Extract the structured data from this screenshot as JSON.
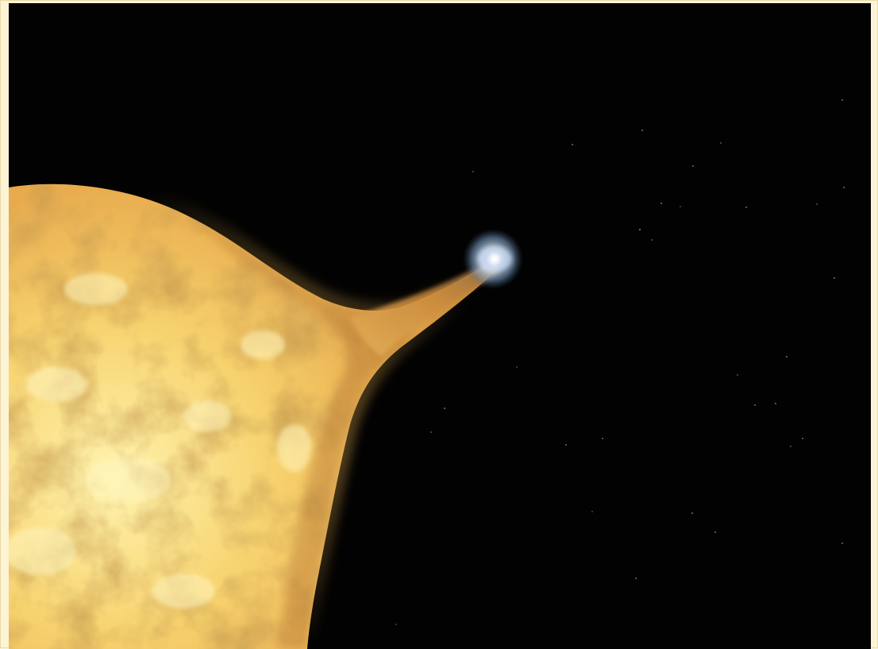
{
  "scene": {
    "subject": "red-giant-star-with-compact-companion",
    "colors": {
      "space": "#020202",
      "star_core": "#fff2a8",
      "star_mid": "#f2c25a",
      "star_edge": "#c8852e",
      "companion_glow": "#d9eaff",
      "frame_background": "#fdf4d6"
    }
  }
}
